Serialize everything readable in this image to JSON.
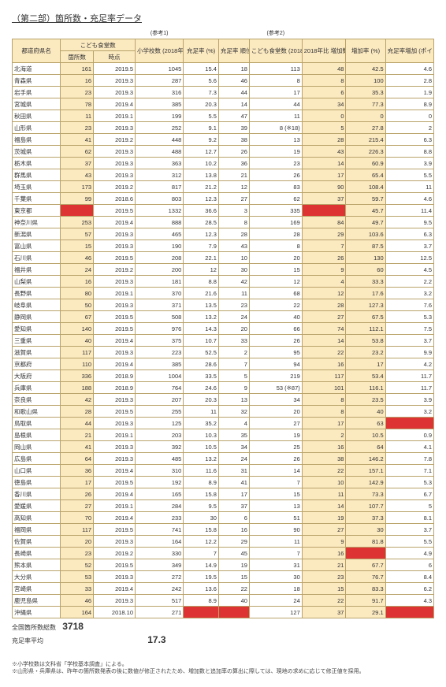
{
  "title": "（第二部）箇所数・充足率データ",
  "ref1": "(参考1)",
  "ref2": "(参考2)",
  "headers": {
    "pref": "都道府県名",
    "group1": "こども食堂数",
    "n": "箇所数",
    "t": "時点",
    "schools": "小学校数 (2018年)",
    "rate": "充足率 (%)",
    "rank": "充足率 順位",
    "c2018": "こども食堂数 (2018年)",
    "inc": "2018年比 増加数",
    "pct": "増加率 (%)",
    "pt": "充足率増加 (ポイント)"
  },
  "rows": [
    {
      "name": "北海道",
      "n": 161,
      "t": "2019.5",
      "s": 1045,
      "r": 15.4,
      "rk": 18,
      "c": 113,
      "inc": 48,
      "pct": 42.5,
      "pt": 4.6
    },
    {
      "name": "青森県",
      "n": 16,
      "t": "2019.3",
      "s": 287,
      "r": 5.6,
      "rk": 46,
      "c": 8,
      "inc": 8,
      "pct": 100.0,
      "pt": 2.8
    },
    {
      "name": "岩手県",
      "n": 23,
      "t": "2019.3",
      "s": 316,
      "r": 7.3,
      "rk": 44,
      "c": 17,
      "inc": 6,
      "pct": 35.3,
      "pt": 1.9
    },
    {
      "name": "宮城県",
      "n": 78,
      "t": "2019.4",
      "s": 385,
      "r": 20.3,
      "rk": 14,
      "c": 44,
      "inc": 34,
      "pct": 77.3,
      "pt": 8.9
    },
    {
      "name": "秋田県",
      "n": 11,
      "t": "2019.1",
      "s": 199,
      "r": 5.5,
      "rk": 47,
      "c": 11,
      "inc": 0,
      "pct": 0.0,
      "pt": 0.0
    },
    {
      "name": "山形県",
      "n": 23,
      "t": "2019.3",
      "s": 252,
      "r": 9.1,
      "rk": 39,
      "c": "8 (※18)",
      "inc": 5,
      "pct": 27.8,
      "pt": 2.0
    },
    {
      "name": "福島県",
      "n": 41,
      "t": "2019.2",
      "s": 448,
      "r": 9.2,
      "rk": 38,
      "c": 13,
      "inc": 28,
      "pct": 215.4,
      "pt": 6.3
    },
    {
      "name": "茨城県",
      "n": 62,
      "t": "2019.3",
      "s": 488,
      "r": 12.7,
      "rk": 26,
      "c": 19,
      "inc": 43,
      "pct": 226.3,
      "pt": 8.8
    },
    {
      "name": "栃木県",
      "n": 37,
      "t": "2019.3",
      "s": 363,
      "r": 10.2,
      "rk": 36,
      "c": 23,
      "inc": 14,
      "pct": 60.9,
      "pt": 3.9
    },
    {
      "name": "群馬県",
      "n": 43,
      "t": "2019.3",
      "s": 312,
      "r": 13.8,
      "rk": 21,
      "c": 26,
      "inc": 17,
      "pct": 65.4,
      "pt": 5.5
    },
    {
      "name": "埼玉県",
      "n": 173,
      "t": "2019.2",
      "s": 817,
      "r": 21.2,
      "rk": 12,
      "c": 83,
      "inc": 90,
      "pct": 108.4,
      "pt": 11.0
    },
    {
      "name": "千葉県",
      "n": 99,
      "t": "2018.6",
      "s": 803,
      "r": 12.3,
      "rk": 27,
      "c": 62,
      "inc": 37,
      "pct": 59.7,
      "pt": 4.6
    },
    {
      "name": "東京都",
      "n": "",
      "t": "2019.5",
      "s": 1332,
      "r": 36.6,
      "rk": 3,
      "c": 335,
      "inc": "",
      "pct": 45.7,
      "pt": 11.4,
      "hl_n": true,
      "hl_inc": true
    },
    {
      "name": "神奈川県",
      "n": 253,
      "t": "2019.4",
      "s": 888,
      "r": 28.5,
      "rk": 8,
      "c": 169,
      "inc": 84,
      "pct": 49.7,
      "pt": 9.5
    },
    {
      "name": "新潟県",
      "n": 57,
      "t": "2019.3",
      "s": 465,
      "r": 12.3,
      "rk": 28,
      "c": 28,
      "inc": 29,
      "pct": 103.6,
      "pt": 6.3
    },
    {
      "name": "富山県",
      "n": 15,
      "t": "2019.3",
      "s": 190,
      "r": 7.9,
      "rk": 43,
      "c": 8,
      "inc": 7,
      "pct": 87.5,
      "pt": 3.7
    },
    {
      "name": "石川県",
      "n": 46,
      "t": "2019.5",
      "s": 208,
      "r": 22.1,
      "rk": 10,
      "c": 20,
      "inc": 26,
      "pct": 130.0,
      "pt": 12.5
    },
    {
      "name": "福井県",
      "n": 24,
      "t": "2019.2",
      "s": 200,
      "r": 12.0,
      "rk": 30,
      "c": 15,
      "inc": 9,
      "pct": 60.0,
      "pt": 4.5
    },
    {
      "name": "山梨県",
      "n": 16,
      "t": "2019.3",
      "s": 181,
      "r": 8.8,
      "rk": 42,
      "c": 12,
      "inc": 4,
      "pct": 33.3,
      "pt": 2.2
    },
    {
      "name": "長野県",
      "n": 80,
      "t": "2019.1",
      "s": 370,
      "r": 21.6,
      "rk": 11,
      "c": 68,
      "inc": 12,
      "pct": 17.6,
      "pt": 3.2
    },
    {
      "name": "岐阜県",
      "n": 50,
      "t": "2019.3",
      "s": 371,
      "r": 13.5,
      "rk": 23,
      "c": 22,
      "inc": 28,
      "pct": 127.3,
      "pt": 7.6
    },
    {
      "name": "静岡県",
      "n": 67,
      "t": "2019.5",
      "s": 508,
      "r": 13.2,
      "rk": 24,
      "c": 40,
      "inc": 27,
      "pct": 67.5,
      "pt": 5.3
    },
    {
      "name": "愛知県",
      "n": 140,
      "t": "2019.5",
      "s": 976,
      "r": 14.3,
      "rk": 20,
      "c": 66,
      "inc": 74,
      "pct": 112.1,
      "pt": 7.5
    },
    {
      "name": "三重県",
      "n": 40,
      "t": "2019.4",
      "s": 375,
      "r": 10.7,
      "rk": 33,
      "c": 26,
      "inc": 14,
      "pct": 53.8,
      "pt": 3.7
    },
    {
      "name": "滋賀県",
      "n": 117,
      "t": "2019.3",
      "s": 223,
      "r": 52.5,
      "rk": 2,
      "c": 95,
      "inc": 22,
      "pct": 23.2,
      "pt": 9.9
    },
    {
      "name": "京都府",
      "n": 110,
      "t": "2019.4",
      "s": 385,
      "r": 28.6,
      "rk": 7,
      "c": 94,
      "inc": 16,
      "pct": 17.0,
      "pt": 4.2
    },
    {
      "name": "大阪府",
      "n": 336,
      "t": "2018.9",
      "s": 1004,
      "r": 33.5,
      "rk": 5,
      "c": 219,
      "inc": 117,
      "pct": 53.4,
      "pt": 11.7
    },
    {
      "name": "兵庫県",
      "n": 188,
      "t": "2018.9",
      "s": 764,
      "r": 24.6,
      "rk": 9,
      "c": "53 (※87)",
      "inc": 101,
      "pct": 116.1,
      "pt": 11.7
    },
    {
      "name": "奈良県",
      "n": 42,
      "t": "2019.3",
      "s": 207,
      "r": 20.3,
      "rk": 13,
      "c": 34,
      "inc": 8,
      "pct": 23.5,
      "pt": 3.9
    },
    {
      "name": "和歌山県",
      "n": 28,
      "t": "2019.5",
      "s": 255,
      "r": 11.0,
      "rk": 32,
      "c": 20,
      "inc": 8,
      "pct": 40.0,
      "pt": 3.2
    },
    {
      "name": "鳥取県",
      "n": 44,
      "t": "2019.3",
      "s": 125,
      "r": 35.2,
      "rk": 4,
      "c": 27,
      "inc": 17,
      "pct": 63.0,
      "pt": "",
      "hl_pt": true
    },
    {
      "name": "島根県",
      "n": 21,
      "t": "2019.1",
      "s": 203,
      "r": 10.3,
      "rk": 35,
      "c": 19,
      "inc": 2,
      "pct": 10.5,
      "pt": 0.9
    },
    {
      "name": "岡山県",
      "n": 41,
      "t": "2019.3",
      "s": 392,
      "r": 10.5,
      "rk": 34,
      "c": 25,
      "inc": 16,
      "pct": 64.0,
      "pt": 4.1
    },
    {
      "name": "広島県",
      "n": 64,
      "t": "2019.3",
      "s": 485,
      "r": 13.2,
      "rk": 24,
      "c": 26,
      "inc": 38,
      "pct": 146.2,
      "pt": 7.8
    },
    {
      "name": "山口県",
      "n": 36,
      "t": "2019.4",
      "s": 310,
      "r": 11.6,
      "rk": 31,
      "c": 14,
      "inc": 22,
      "pct": 157.1,
      "pt": 7.1
    },
    {
      "name": "徳島県",
      "n": 17,
      "t": "2019.5",
      "s": 192,
      "r": 8.9,
      "rk": 41,
      "c": 7,
      "inc": 10,
      "pct": 142.9,
      "pt": 5.3
    },
    {
      "name": "香川県",
      "n": 26,
      "t": "2019.4",
      "s": 165,
      "r": 15.8,
      "rk": 17,
      "c": 15,
      "inc": 11,
      "pct": 73.3,
      "pt": 6.7
    },
    {
      "name": "愛媛県",
      "n": 27,
      "t": "2019.1",
      "s": 284,
      "r": 9.5,
      "rk": 37,
      "c": 13,
      "inc": 14,
      "pct": 107.7,
      "pt": 5.0
    },
    {
      "name": "高知県",
      "n": 70,
      "t": "2019.4",
      "s": 233,
      "r": 30.0,
      "rk": 6,
      "c": 51,
      "inc": 19,
      "pct": 37.3,
      "pt": 8.1
    },
    {
      "name": "福岡県",
      "n": 117,
      "t": "2019.5",
      "s": 741,
      "r": 15.8,
      "rk": 16,
      "c": 90,
      "inc": 27,
      "pct": 30.0,
      "pt": 3.7
    },
    {
      "name": "佐賀県",
      "n": 20,
      "t": "2019.3",
      "s": 164,
      "r": 12.2,
      "rk": 29,
      "c": 11,
      "inc": 9,
      "pct": 81.8,
      "pt": 5.5
    },
    {
      "name": "長崎県",
      "n": 23,
      "t": "2019.2",
      "s": 330,
      "r": 7.0,
      "rk": 45,
      "c": 7,
      "inc": 16,
      "pct": "",
      "pt": 4.9,
      "hl_pct": true
    },
    {
      "name": "熊本県",
      "n": 52,
      "t": "2019.5",
      "s": 349,
      "r": 14.9,
      "rk": 19,
      "c": 31,
      "inc": 21,
      "pct": 67.7,
      "pt": 6.0
    },
    {
      "name": "大分県",
      "n": 53,
      "t": "2019.3",
      "s": 272,
      "r": 19.5,
      "rk": 15,
      "c": 30,
      "inc": 23,
      "pct": 76.7,
      "pt": 8.4
    },
    {
      "name": "宮崎県",
      "n": 33,
      "t": "2019.4",
      "s": 242,
      "r": 13.6,
      "rk": 22,
      "c": 18,
      "inc": 15,
      "pct": 83.3,
      "pt": 6.2
    },
    {
      "name": "鹿児島県",
      "n": 46,
      "t": "2019.3",
      "s": 517,
      "r": 8.9,
      "rk": 40,
      "c": 24,
      "inc": 22,
      "pct": 91.7,
      "pt": 4.3
    },
    {
      "name": "沖縄県",
      "n": 164,
      "t": "2018.10",
      "s": 271,
      "r": "",
      "rk": "",
      "c": 127,
      "inc": 37,
      "pct": 29.1,
      "pt": "",
      "hl_r": true,
      "hl_rk": true,
      "hl_pt": true
    }
  ],
  "total_label": "全国箇所数総数",
  "total_value": "3718",
  "avg_label": "充足率平均",
  "avg_value": "17.3",
  "note1": "※小学校数は文科省「学校基本調査」による。",
  "note2": "※山形県・兵庫県は、昨年の箇所数発表の後に数値が修正されたため、増加数と追加率の算出に際しては、現地の求めに応じて修正値を採用。"
}
